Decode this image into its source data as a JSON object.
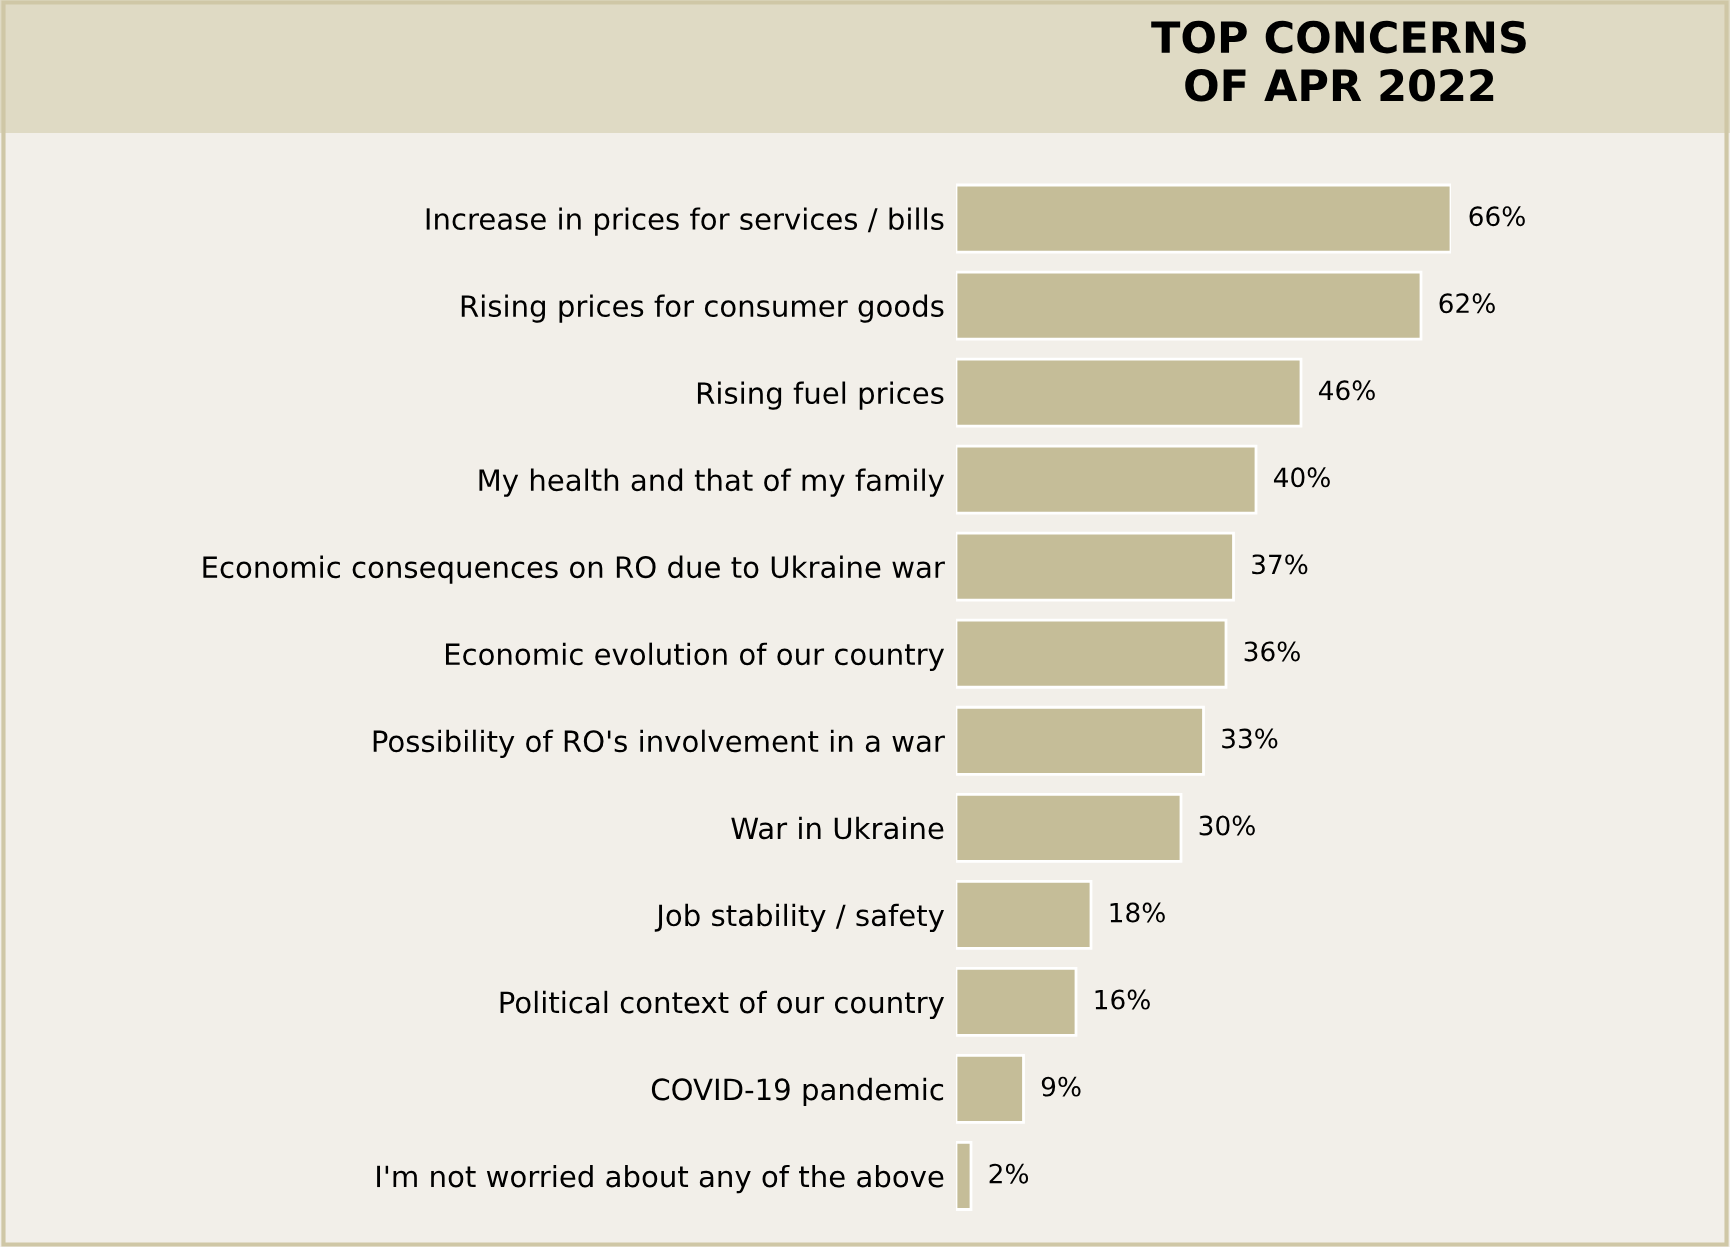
{
  "chart_data": {
    "type": "bar",
    "orientation": "horizontal",
    "title": "TOP CONCERNS\nOF APR 2022",
    "categories": [
      "Increase in prices for services / bills",
      "Rising prices for consumer goods",
      "Rising fuel prices",
      "My health and that of my family",
      "Economic consequences on RO due to Ukraine war",
      "Economic evolution of our country",
      "Possibility of RO's involvement in a war",
      "War in Ukraine",
      "Job stability / safety",
      "Political context of our country",
      "COVID-19 pandemic",
      "I'm not worried about any of the above"
    ],
    "values": [
      66,
      62,
      46,
      40,
      37,
      36,
      33,
      30,
      18,
      16,
      9,
      2
    ],
    "value_labels": [
      "66%",
      "62%",
      "46%",
      "40%",
      "37%",
      "36%",
      "33%",
      "30%",
      "18%",
      "16%",
      "9%",
      "2%"
    ],
    "color": "#c5bd98",
    "grid": false,
    "legend": false
  }
}
